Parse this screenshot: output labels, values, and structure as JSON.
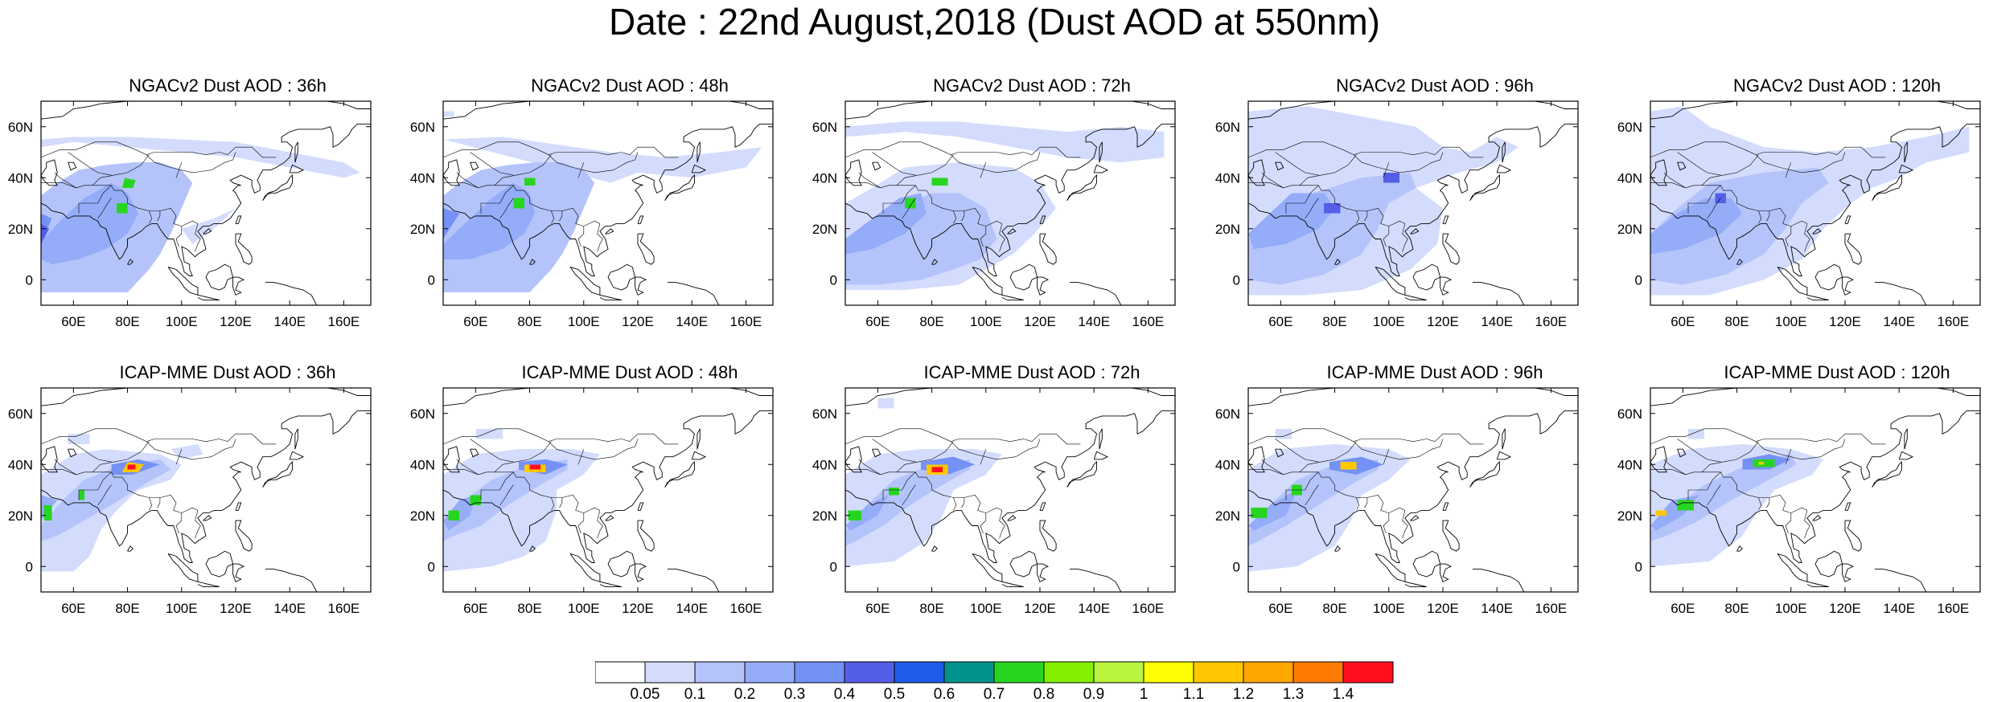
{
  "title": "Date : 22nd August,2018 (Dust AOD at 550nm)",
  "map": {
    "lon_range": [
      48,
      170
    ],
    "lat_range": [
      -10,
      70
    ],
    "lon_ticks": [
      "60E",
      "80E",
      "100E",
      "120E",
      "140E",
      "160E"
    ],
    "lat_ticks": [
      "0",
      "20N",
      "40N",
      "60N"
    ],
    "lon_tick_values": [
      60,
      80,
      100,
      120,
      140,
      160
    ],
    "lat_tick_values": [
      0,
      20,
      40,
      60
    ],
    "coastline_color": "#000000"
  },
  "panels": [
    {
      "title": "NGACv2 Dust AOD : 36h",
      "model": "NGACv2",
      "lead": "36h",
      "hotspots": [
        "18N 50E",
        "38N 80E",
        "28N 78E"
      ]
    },
    {
      "title": "NGACv2 Dust AOD : 48h",
      "model": "NGACv2",
      "lead": "48h",
      "hotspots": [
        "38N 80E",
        "28N 76E"
      ]
    },
    {
      "title": "NGACv2 Dust AOD : 72h",
      "model": "NGACv2",
      "lead": "72h",
      "hotspots": [
        "38N 82E",
        "30N 74E"
      ]
    },
    {
      "title": "NGACv2 Dust AOD : 96h",
      "model": "NGACv2",
      "lead": "96h",
      "hotspots": [
        "29N 78E",
        "40N 102E"
      ]
    },
    {
      "title": "NGACv2 Dust AOD : 120h",
      "model": "NGACv2",
      "lead": "120h",
      "hotspots": [
        "31N 75E"
      ]
    },
    {
      "title": "ICAP-MME Dust AOD : 36h",
      "model": "ICAP-MME",
      "lead": "36h",
      "hotspots": [
        "38N 84E",
        "28N 66E",
        "20N 52E"
      ]
    },
    {
      "title": "ICAP-MME Dust AOD : 48h",
      "model": "ICAP-MME",
      "lead": "48h",
      "hotspots": [
        "39N 82E",
        "26N 62E",
        "20N 54E"
      ]
    },
    {
      "title": "ICAP-MME Dust AOD : 72h",
      "model": "ICAP-MME",
      "lead": "72h",
      "hotspots": [
        "38N 82E",
        "28N 66E",
        "20N 52E"
      ]
    },
    {
      "title": "ICAP-MME Dust AOD : 96h",
      "model": "ICAP-MME",
      "lead": "96h",
      "hotspots": [
        "39N 86E",
        "28N 66E",
        "21N 52E"
      ]
    },
    {
      "title": "ICAP-MME Dust AOD : 120h",
      "model": "ICAP-MME",
      "lead": "120h",
      "hotspots": [
        "40N 90E",
        "24N 62E",
        "21N 54E"
      ]
    }
  ],
  "colorbar": {
    "labels": [
      "0.05",
      "0.1",
      "0.2",
      "0.3",
      "0.4",
      "0.5",
      "0.6",
      "0.7",
      "0.8",
      "0.9",
      "1",
      "1.1",
      "1.2",
      "1.3",
      "1.4"
    ],
    "colors": [
      "#ffffff",
      "#d3dcfd",
      "#b4c4fb",
      "#95acf9",
      "#7491f5",
      "#555ee8",
      "#1e5de7",
      "#00938d",
      "#27d520",
      "#83ef01",
      "#b9f43f",
      "#fffe04",
      "#ffc800",
      "#ffa500",
      "#ff7a00",
      "#ff0f1e"
    ]
  }
}
